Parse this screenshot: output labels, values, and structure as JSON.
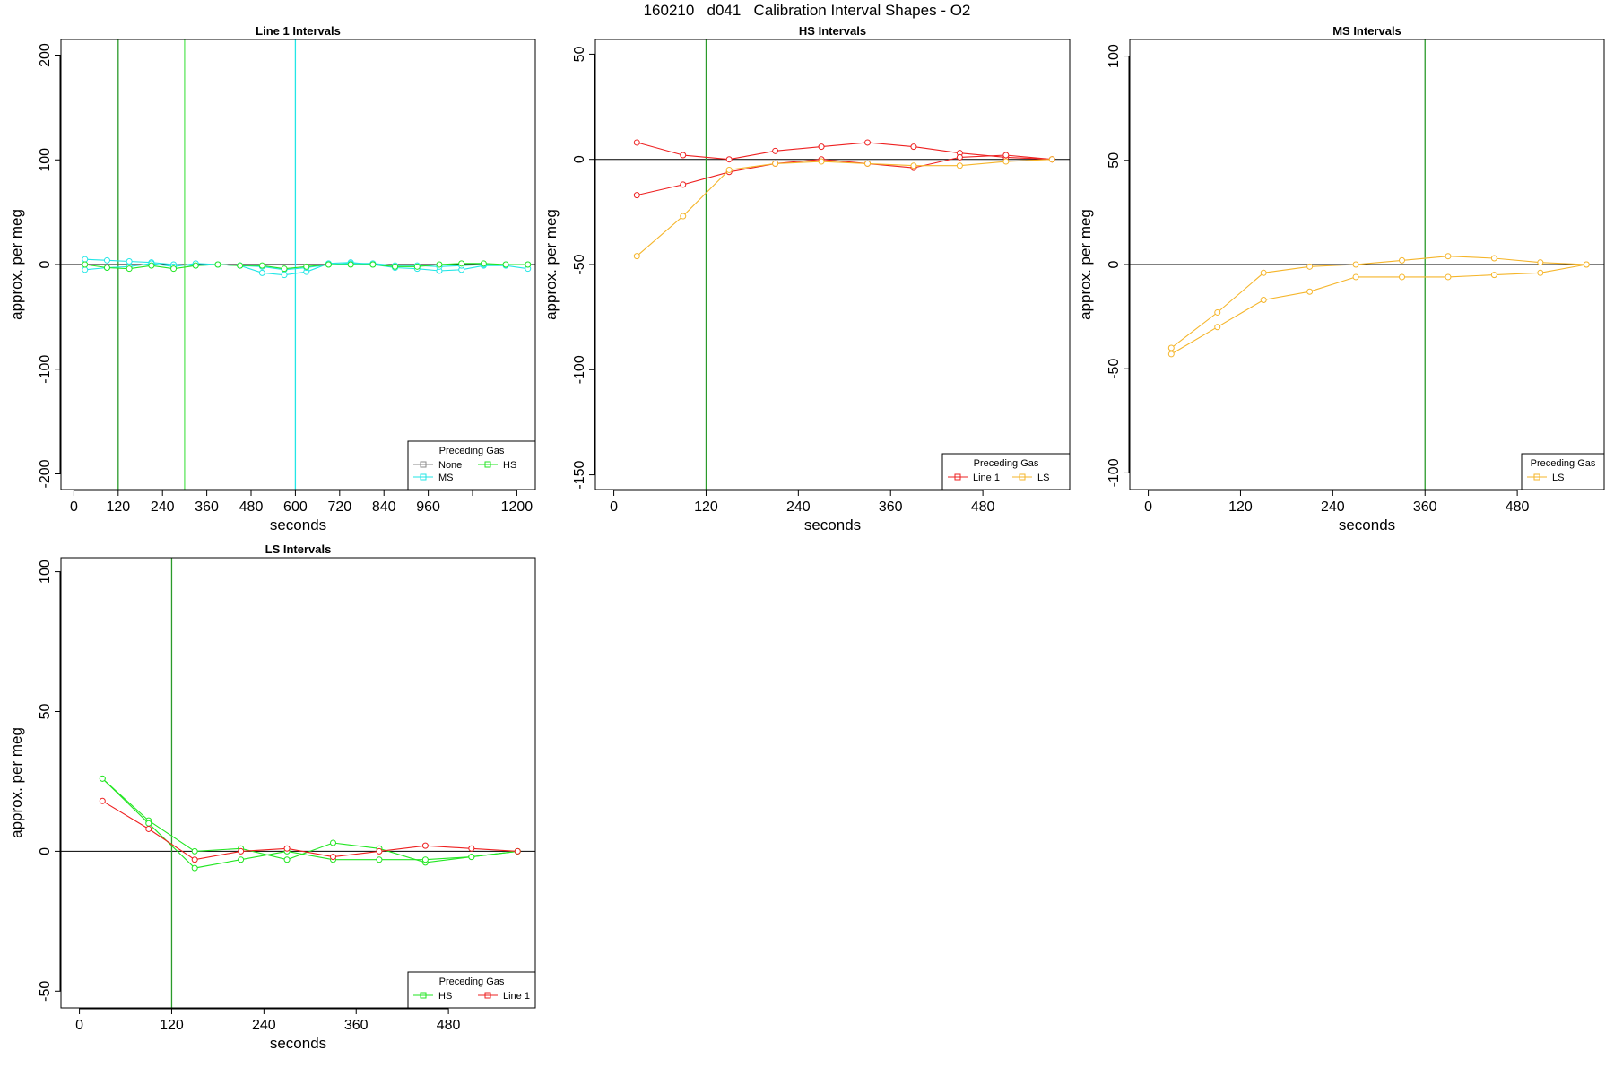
{
  "page_title": "160210   d041   Calibration Interval Shapes - O2",
  "colors": {
    "None": "#888888",
    "MS": "#22e6e6",
    "HS": "#22e622",
    "Line 1": "#ee2020",
    "LS": "#f5b52a",
    "frame": "#000000"
  },
  "chart_data": [
    {
      "id": "line1",
      "type": "line",
      "title": "Line 1 Intervals",
      "xlabel": "seconds",
      "ylabel": "approx. per meg",
      "xlim": [
        -35,
        1250
      ],
      "ylim": [
        -215,
        215
      ],
      "xticks": [
        0,
        120,
        240,
        360,
        480,
        600,
        720,
        840,
        960,
        1080,
        1200
      ],
      "xtick_labels": [
        "0",
        "120",
        "240",
        "360",
        "480",
        "600",
        "720",
        "840",
        "960",
        "",
        "1200"
      ],
      "yticks": [
        -200,
        -100,
        0,
        100,
        200
      ],
      "ytick_labels": [
        "-200",
        "-100",
        "0",
        "100",
        "200"
      ],
      "hlines": [
        0
      ],
      "vlines": [
        {
          "x": 120,
          "color": "#2a9a2a"
        },
        {
          "x": 300,
          "color": "#5ee65e"
        },
        {
          "x": 600,
          "color": "#22e6e6"
        }
      ],
      "legend": {
        "title": "Preceding Gas",
        "entries": [
          "None",
          "HS",
          "MS"
        ],
        "position": "bottom-right",
        "columns": 2
      },
      "series": [
        {
          "name": "MS",
          "color": "#22e6e6",
          "x": [
            30,
            90,
            150,
            210,
            270,
            330,
            390,
            450,
            510,
            570,
            630,
            690,
            750,
            810,
            870,
            930,
            990,
            1050,
            1110,
            1170,
            1230
          ],
          "y": [
            5,
            4,
            3,
            2,
            0,
            -1,
            0,
            -1,
            -8,
            -10,
            -7,
            1,
            2,
            0,
            -3,
            -4,
            -6,
            -5,
            -1,
            -1,
            -4
          ]
        },
        {
          "name": "MS",
          "color": "#22e6e6",
          "x": [
            30,
            90,
            150,
            210,
            270,
            330,
            390,
            450,
            510,
            570,
            630,
            690,
            750,
            810,
            870,
            930,
            990,
            1050,
            1110,
            1170,
            1230
          ],
          "y": [
            -5,
            -3,
            -2,
            1,
            -2,
            1,
            0,
            -1,
            -2,
            -5,
            -3,
            0,
            1,
            1,
            -1,
            -1,
            -2,
            -1,
            0,
            0,
            0
          ]
        },
        {
          "name": "HS",
          "color": "#22e622",
          "x": [
            30,
            90,
            150,
            210,
            270,
            330,
            390,
            450,
            510,
            570,
            630,
            690,
            750,
            810,
            870,
            930,
            990,
            1050,
            1110,
            1170,
            1230
          ],
          "y": [
            0,
            -3,
            -4,
            -1,
            -4,
            -1,
            0,
            -1,
            -1,
            -4,
            -2,
            0,
            0,
            0,
            -2,
            -2,
            0,
            1,
            1,
            0,
            0
          ]
        }
      ]
    },
    {
      "id": "hs",
      "type": "line",
      "title": "HS Intervals",
      "xlabel": "seconds",
      "ylabel": "approx. per meg",
      "xlim": [
        -24,
        593
      ],
      "ylim": [
        -157,
        57
      ],
      "xticks": [
        0,
        120,
        240,
        360,
        480
      ],
      "xtick_labels": [
        "0",
        "120",
        "240",
        "360",
        "480"
      ],
      "yticks": [
        -150,
        -100,
        -50,
        0,
        50
      ],
      "ytick_labels": [
        "-150",
        "-100",
        "-50",
        "0",
        "50"
      ],
      "hlines": [
        0
      ],
      "vlines": [
        {
          "x": 120,
          "color": "#2a9a2a"
        }
      ],
      "legend": {
        "title": "Preceding Gas",
        "entries": [
          "Line 1",
          "LS"
        ],
        "position": "bottom-right",
        "columns": 2
      },
      "series": [
        {
          "name": "Line 1",
          "color": "#ee2020",
          "x": [
            30,
            90,
            150,
            210,
            270,
            330,
            390,
            450,
            510,
            570
          ],
          "y": [
            8,
            2,
            0,
            4,
            6,
            8,
            6,
            3,
            1,
            0
          ]
        },
        {
          "name": "Line 1",
          "color": "#ee2020",
          "x": [
            30,
            90,
            150,
            210,
            270,
            330,
            390,
            450,
            510,
            570
          ],
          "y": [
            -17,
            -12,
            -6,
            -2,
            0,
            -2,
            -4,
            1,
            2,
            0
          ]
        },
        {
          "name": "LS",
          "color": "#f5b52a",
          "x": [
            30,
            90,
            150,
            210,
            270,
            330,
            390,
            450,
            510,
            570
          ],
          "y": [
            -46,
            -27,
            -5,
            -2,
            -1,
            -2,
            -3,
            -3,
            -1,
            0
          ]
        }
      ]
    },
    {
      "id": "ms",
      "type": "line",
      "title": "MS Intervals",
      "xlabel": "seconds",
      "ylabel": "approx. per meg",
      "xlim": [
        -24,
        593
      ],
      "ylim": [
        -108,
        108
      ],
      "xticks": [
        0,
        120,
        240,
        360,
        480
      ],
      "xtick_labels": [
        "0",
        "120",
        "240",
        "360",
        "480"
      ],
      "yticks": [
        -100,
        -50,
        0,
        50,
        100
      ],
      "ytick_labels": [
        "-100",
        "-50",
        "0",
        "50",
        "100"
      ],
      "hlines": [
        0
      ],
      "vlines": [
        {
          "x": 360,
          "color": "#2a9a2a"
        }
      ],
      "legend": {
        "title": "Preceding Gas",
        "entries": [
          "LS"
        ],
        "position": "bottom-right",
        "columns": 1
      },
      "series": [
        {
          "name": "LS",
          "color": "#f5b52a",
          "x": [
            30,
            90,
            150,
            210,
            270,
            330,
            390,
            450,
            510,
            570
          ],
          "y": [
            -40,
            -23,
            -4,
            -1,
            0,
            2,
            4,
            3,
            1,
            0
          ]
        },
        {
          "name": "LS",
          "color": "#f5b52a",
          "x": [
            30,
            90,
            150,
            210,
            270,
            330,
            390,
            450,
            510,
            570
          ],
          "y": [
            -43,
            -30,
            -17,
            -13,
            -6,
            -6,
            -6,
            -5,
            -4,
            0
          ]
        }
      ]
    },
    {
      "id": "ls",
      "type": "line",
      "title": "LS Intervals",
      "xlabel": "seconds",
      "ylabel": "approx. per meg",
      "xlim": [
        -24,
        593
      ],
      "ylim": [
        -56,
        105
      ],
      "xticks": [
        0,
        120,
        240,
        360,
        480
      ],
      "xtick_labels": [
        "0",
        "120",
        "240",
        "360",
        "480"
      ],
      "yticks": [
        -50,
        0,
        50,
        100
      ],
      "ytick_labels": [
        "-50",
        "0",
        "50",
        "100"
      ],
      "hlines": [
        0
      ],
      "vlines": [
        {
          "x": 120,
          "color": "#2a9a2a"
        }
      ],
      "legend": {
        "title": "Preceding Gas",
        "entries": [
          "HS",
          "Line 1"
        ],
        "position": "bottom-right",
        "columns": 2
      },
      "series": [
        {
          "name": "HS",
          "color": "#22e622",
          "x": [
            30,
            90,
            150,
            210,
            270,
            330,
            390,
            450,
            510,
            570
          ],
          "y": [
            26,
            11,
            0,
            1,
            -3,
            3,
            1,
            -4,
            -2,
            0
          ]
        },
        {
          "name": "HS",
          "color": "#22e622",
          "x": [
            30,
            90,
            150,
            210,
            270,
            330,
            390,
            450,
            510,
            570
          ],
          "y": [
            26,
            10,
            -6,
            -3,
            0,
            -3,
            -3,
            -3,
            -2,
            0
          ]
        },
        {
          "name": "Line 1",
          "color": "#ee2020",
          "x": [
            30,
            90,
            150,
            210,
            270,
            330,
            390,
            450,
            510,
            570
          ],
          "y": [
            18,
            8,
            -3,
            0,
            1,
            -2,
            0,
            2,
            1,
            0
          ]
        }
      ]
    }
  ]
}
